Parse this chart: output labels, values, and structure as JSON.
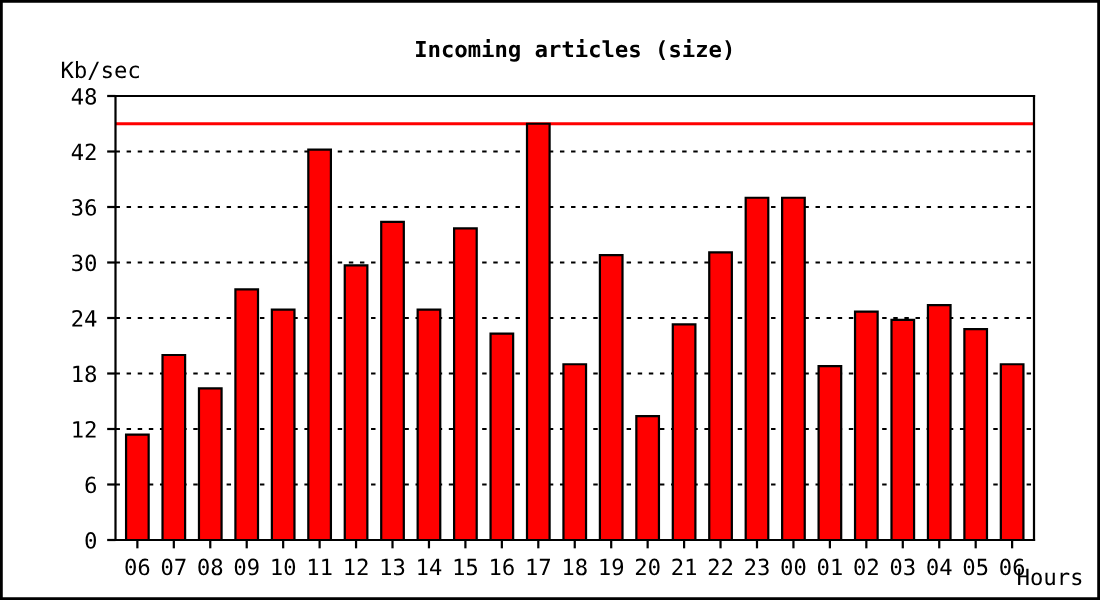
{
  "chart_data": {
    "type": "bar",
    "title": "Incoming articles (size)",
    "ylabel": "Kb/sec",
    "xlabel": "Hours",
    "categories": [
      "06",
      "07",
      "08",
      "09",
      "10",
      "11",
      "12",
      "13",
      "14",
      "15",
      "16",
      "17",
      "18",
      "19",
      "20",
      "21",
      "22",
      "23",
      "00",
      "01",
      "02",
      "03",
      "04",
      "05",
      "06"
    ],
    "values": [
      11.4,
      20.0,
      16.4,
      27.1,
      24.9,
      42.2,
      29.7,
      34.4,
      24.9,
      33.7,
      22.3,
      45.0,
      19.0,
      30.8,
      13.4,
      23.3,
      31.1,
      37.0,
      37.0,
      18.8,
      24.7,
      23.8,
      25.4,
      22.8,
      19.0
    ],
    "color": "#ff0000",
    "ylim": [
      0,
      48
    ],
    "yticks": [
      0,
      6,
      12,
      18,
      24,
      30,
      36,
      42,
      48
    ],
    "grid": "y",
    "ref_lines": [
      {
        "axis": "y",
        "value": 45.0,
        "color": "#ff0000"
      }
    ]
  }
}
